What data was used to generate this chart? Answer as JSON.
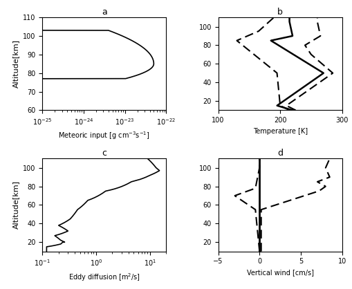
{
  "title_a": "a",
  "title_b": "b",
  "title_c": "c",
  "title_d": "d",
  "xlabel_a": "Meteoric input [g cm$^{-3}$s$^{-1}$]",
  "xlabel_b": "Temperature [K]",
  "xlabel_c": "Eddy diffusion [m$^2$/s]",
  "xlabel_d": "Vertical wind [cm/s]",
  "ylabel": "Altitude[km]",
  "ylim_a": [
    60,
    110
  ],
  "ylim_bcd": [
    10,
    110
  ],
  "alt_ticks_a": [
    60,
    70,
    80,
    90,
    100,
    110
  ],
  "alt_ticks_bcd": [
    20,
    40,
    60,
    80,
    100
  ],
  "xlim_a_log": [
    -25,
    -22
  ],
  "xlim_b": [
    100,
    300
  ],
  "xlim_c_log": [
    -1,
    1.3
  ],
  "xlim_d": [
    -5,
    10
  ]
}
